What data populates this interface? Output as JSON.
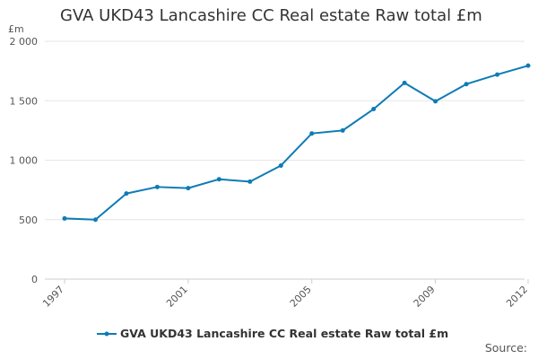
{
  "chart_data": {
    "type": "line",
    "title": "GVA UKD43 Lancashire CC Real estate Raw total £m",
    "ylabel": "£m",
    "xlabel": "",
    "x": [
      1997,
      1998,
      1999,
      2000,
      2001,
      2002,
      2003,
      2004,
      2005,
      2006,
      2007,
      2008,
      2009,
      2010,
      2011,
      2012
    ],
    "series": [
      {
        "name": "GVA UKD43 Lancashire CC Real estate Raw total £m",
        "color": "#0e7bb5",
        "values": [
          510,
          500,
          720,
          775,
          765,
          840,
          820,
          955,
          1225,
          1250,
          1430,
          1650,
          1495,
          1640,
          1720,
          1795
        ]
      }
    ],
    "xlim": [
      1997,
      2012
    ],
    "ylim": [
      0,
      2000
    ],
    "yticks": [
      0,
      500,
      1000,
      1500,
      2000
    ],
    "ytick_labels": [
      "0",
      "500",
      "1 000",
      "1 500",
      "2 000"
    ],
    "xticks": [
      1997,
      2001,
      2005,
      2009,
      2012
    ],
    "xtick_labels": [
      "1997",
      "2001",
      "2005",
      "2009",
      "2012"
    ],
    "grid": true,
    "legend": "bottom-center",
    "source_label": "Source:"
  }
}
